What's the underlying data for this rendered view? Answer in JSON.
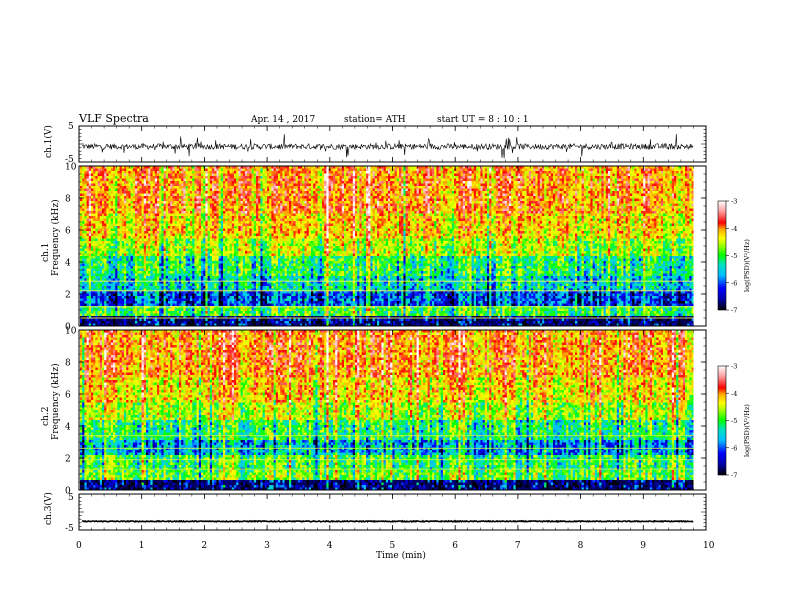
{
  "header": {
    "title": "VLF  Spectra",
    "date": "Apr. 14 , 2017",
    "station": "station= ATH",
    "start_ut": "start  UT  =   8  : 10 : 1"
  },
  "chart_data": {
    "type": "heatmap",
    "x_label": "Time  (min)",
    "x_range": [
      0,
      10
    ],
    "x_ticks": [
      "0",
      "1",
      "2",
      "3",
      "4",
      "5",
      "6",
      "7",
      "8",
      "9",
      "10"
    ],
    "data_end_min": 9.8,
    "panels": [
      {
        "id": "ch1-waveform",
        "kind": "line",
        "ylabel": "ch.1(V)",
        "y_range": [
          -5,
          5
        ],
        "y_ticks": [
          "5",
          "-5"
        ],
        "baseline": -0.7,
        "color": "#000000"
      },
      {
        "id": "ch1-spectrogram",
        "kind": "spectrogram",
        "ylabel_line1": "ch.1",
        "ylabel_line2": "Frequency  (kHz)",
        "y_range": [
          0,
          10
        ],
        "y_ticks": [
          "0",
          "2",
          "4",
          "6",
          "8",
          "10"
        ],
        "colorbar_label": "log(PSD)(V²/Hz)",
        "colorbar_ticks": [
          "-3",
          "-4",
          "-5",
          "-6",
          "-7"
        ],
        "colorbar_range": [
          -7,
          -3
        ]
      },
      {
        "id": "ch2-spectrogram",
        "kind": "spectrogram",
        "ylabel_line1": "ch.2",
        "ylabel_line2": "Frequency  (kHz)",
        "y_range": [
          0,
          10
        ],
        "y_ticks": [
          "0",
          "2",
          "4",
          "6",
          "8",
          "10"
        ],
        "colorbar_label": "log(PSD)(V²/Hz)",
        "colorbar_ticks": [
          "-3",
          "-4",
          "-5",
          "-6",
          "-7"
        ],
        "colorbar_range": [
          -7,
          -3
        ]
      },
      {
        "id": "ch3-waveform",
        "kind": "line",
        "ylabel": "ch.3(V)",
        "y_range": [
          -5,
          5
        ],
        "y_ticks": [
          "5",
          "-5"
        ],
        "baseline": -2.6,
        "color": "#000000"
      }
    ],
    "bright_events_min": [
      1.0,
      2.45,
      3.95,
      6.05,
      7.35,
      9.0
    ],
    "colormap": [
      "#000000",
      "#0000aa",
      "#0000ff",
      "#00bfff",
      "#00e0c0",
      "#00ff00",
      "#aaff00",
      "#ffff00",
      "#ffaa00",
      "#ff0000",
      "#ff9999",
      "#ffffff"
    ]
  }
}
